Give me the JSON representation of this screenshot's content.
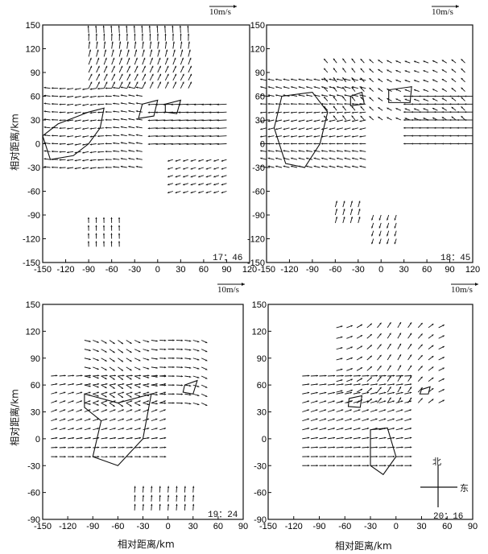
{
  "panels": [
    {
      "id": "p1",
      "time": "17：46",
      "scale_label": "10m/s",
      "ylabel": "相对距离/km",
      "xlabel": "",
      "xticks": [
        "-150",
        "-120",
        "-90",
        "-60",
        "-30",
        "0",
        "30",
        "60",
        "90",
        "120"
      ],
      "yticks": [
        "150",
        "120",
        "90",
        "60",
        "30",
        "0",
        "-30",
        "-60",
        "-90",
        "-120",
        "-150"
      ]
    },
    {
      "id": "p2",
      "time": "18：45",
      "scale_label": "10m/s",
      "ylabel": "",
      "xlabel": "",
      "xticks": [
        "-150",
        "-120",
        "-90",
        "-60",
        "-30",
        "0",
        "30",
        "60",
        "90",
        "120"
      ],
      "yticks": []
    },
    {
      "id": "p3",
      "time": "19：24",
      "scale_label": "10m/s",
      "ylabel": "相对距离/km",
      "xlabel": "相对距离/km",
      "xticks": [
        "-150",
        "-120",
        "-90",
        "-60",
        "-30",
        "0",
        "30",
        "60",
        "90"
      ],
      "yticks": [
        "150",
        "120",
        "90",
        "60",
        "30",
        "0",
        "-30",
        "-60",
        "-90"
      ]
    },
    {
      "id": "p4",
      "time": "20：16",
      "scale_label": "10m/s",
      "ylabel": "",
      "xlabel": "相对距离/km",
      "xticks": [
        "-150",
        "-120",
        "-90",
        "-60",
        "-30",
        "0",
        "30",
        "60",
        "90"
      ],
      "yticks": []
    }
  ],
  "compass": {
    "north": "北",
    "east": "东"
  }
}
